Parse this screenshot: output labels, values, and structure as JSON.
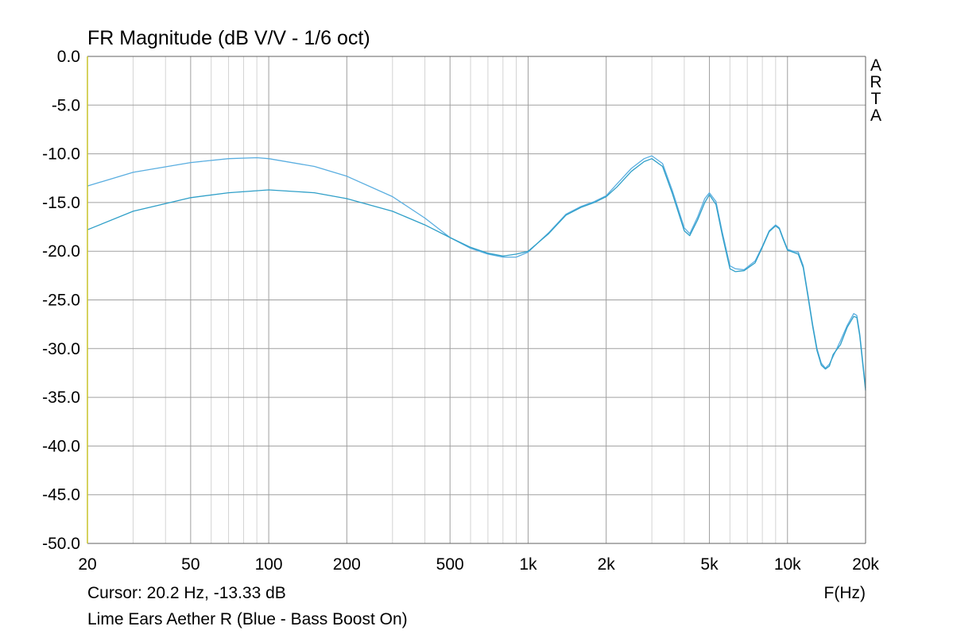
{
  "chart_data": {
    "type": "line",
    "title": "FR Magnitude (dB V/V - 1/6 oct)",
    "xlabel": "F(Hz)",
    "ylabel": "",
    "xscale": "log",
    "xlim": [
      20,
      20000
    ],
    "ylim": [
      -50,
      0
    ],
    "grid": true,
    "x_ticks": [
      20,
      50,
      100,
      200,
      500,
      1000,
      2000,
      5000,
      10000,
      20000
    ],
    "x_tick_labels": [
      "20",
      "50",
      "100",
      "200",
      "500",
      "1k",
      "2k",
      "5k",
      "10k",
      "20k"
    ],
    "y_ticks": [
      0,
      -5,
      -10,
      -15,
      -20,
      -25,
      -30,
      -35,
      -40,
      -45,
      -50
    ],
    "y_tick_labels": [
      "0.0",
      "-5.0",
      "-10.0",
      "-15.0",
      "-20.0",
      "-25.0",
      "-30.0",
      "-35.0",
      "-40.0",
      "-45.0",
      "-50.0"
    ],
    "series": [
      {
        "color": "#5aaee0",
        "x": [
          20,
          30,
          50,
          70,
          90,
          100,
          150,
          200,
          300,
          400,
          500,
          600,
          700,
          800,
          900,
          1000,
          1200,
          1400,
          1600,
          1800,
          2000,
          2200,
          2500,
          2800,
          3000,
          3300,
          3600,
          4000,
          4200,
          4500,
          4800,
          5000,
          5300,
          5600,
          6000,
          6300,
          6800,
          7500,
          8000,
          8500,
          9000,
          9300,
          9600,
          10000,
          10500,
          11000,
          11500,
          12000,
          12500,
          13000,
          13500,
          14000,
          14500,
          15000,
          16000,
          17000,
          18000,
          18500,
          19000,
          20000
        ],
        "y": [
          -13.3,
          -11.9,
          -10.9,
          -10.5,
          -10.4,
          -10.5,
          -11.3,
          -12.3,
          -14.4,
          -16.6,
          -18.6,
          -19.7,
          -20.3,
          -20.6,
          -20.6,
          -20.1,
          -18.1,
          -16.2,
          -15.4,
          -14.9,
          -14.3,
          -13.1,
          -11.5,
          -10.5,
          -10.2,
          -11.0,
          -13.8,
          -17.6,
          -18.2,
          -16.5,
          -14.6,
          -14.0,
          -14.9,
          -18.0,
          -21.5,
          -21.8,
          -21.9,
          -21.0,
          -19.5,
          -17.9,
          -17.3,
          -17.6,
          -18.6,
          -19.8,
          -20.0,
          -20.1,
          -21.5,
          -24.5,
          -27.5,
          -30.0,
          -31.5,
          -32.0,
          -31.6,
          -30.8,
          -29.2,
          -27.6,
          -26.4,
          -26.6,
          -28.5,
          -34.0
        ]
      },
      {
        "color": "#2f9fc8",
        "x": [
          20,
          30,
          50,
          70,
          100,
          150,
          200,
          300,
          400,
          500,
          600,
          700,
          800,
          900,
          1000,
          1200,
          1400,
          1600,
          1800,
          2000,
          2200,
          2500,
          2800,
          3000,
          3300,
          3600,
          4000,
          4200,
          4500,
          4800,
          5000,
          5300,
          5600,
          6000,
          6300,
          6800,
          7500,
          8000,
          8500,
          9000,
          9300,
          9600,
          10000,
          10500,
          11000,
          11500,
          12000,
          12500,
          13000,
          13500,
          14000,
          14500,
          15000,
          16000,
          17000,
          18000,
          18500,
          19000,
          20000
        ],
        "y": [
          -17.8,
          -15.9,
          -14.5,
          -14.0,
          -13.7,
          -14.0,
          -14.6,
          -15.9,
          -17.3,
          -18.6,
          -19.6,
          -20.2,
          -20.5,
          -20.3,
          -20.0,
          -18.2,
          -16.3,
          -15.5,
          -15.0,
          -14.4,
          -13.4,
          -11.8,
          -10.8,
          -10.5,
          -11.3,
          -14.1,
          -17.9,
          -18.4,
          -16.8,
          -15.0,
          -14.2,
          -15.2,
          -18.3,
          -21.8,
          -22.1,
          -22.0,
          -21.2,
          -19.6,
          -18.0,
          -17.4,
          -17.7,
          -18.7,
          -19.9,
          -20.1,
          -20.3,
          -21.7,
          -24.7,
          -27.7,
          -30.2,
          -31.7,
          -32.1,
          -31.8,
          -30.6,
          -29.6,
          -27.8,
          -26.7,
          -26.8,
          -28.7,
          -34.3
        ]
      }
    ]
  },
  "header": {
    "title": "FR Magnitude (dB V/V - 1/6 oct)",
    "brand": "ARTA"
  },
  "footer": {
    "cursor": "Cursor: 20.2 Hz, -13.33 dB",
    "x_unit": "F(Hz)",
    "caption": "Lime Ears Aether R (Blue - Bass Boost On)"
  },
  "colors": {
    "grid_major": "#a0a0a0",
    "grid_minor": "#d4d4d4",
    "left_axis": "#c9c32a"
  }
}
